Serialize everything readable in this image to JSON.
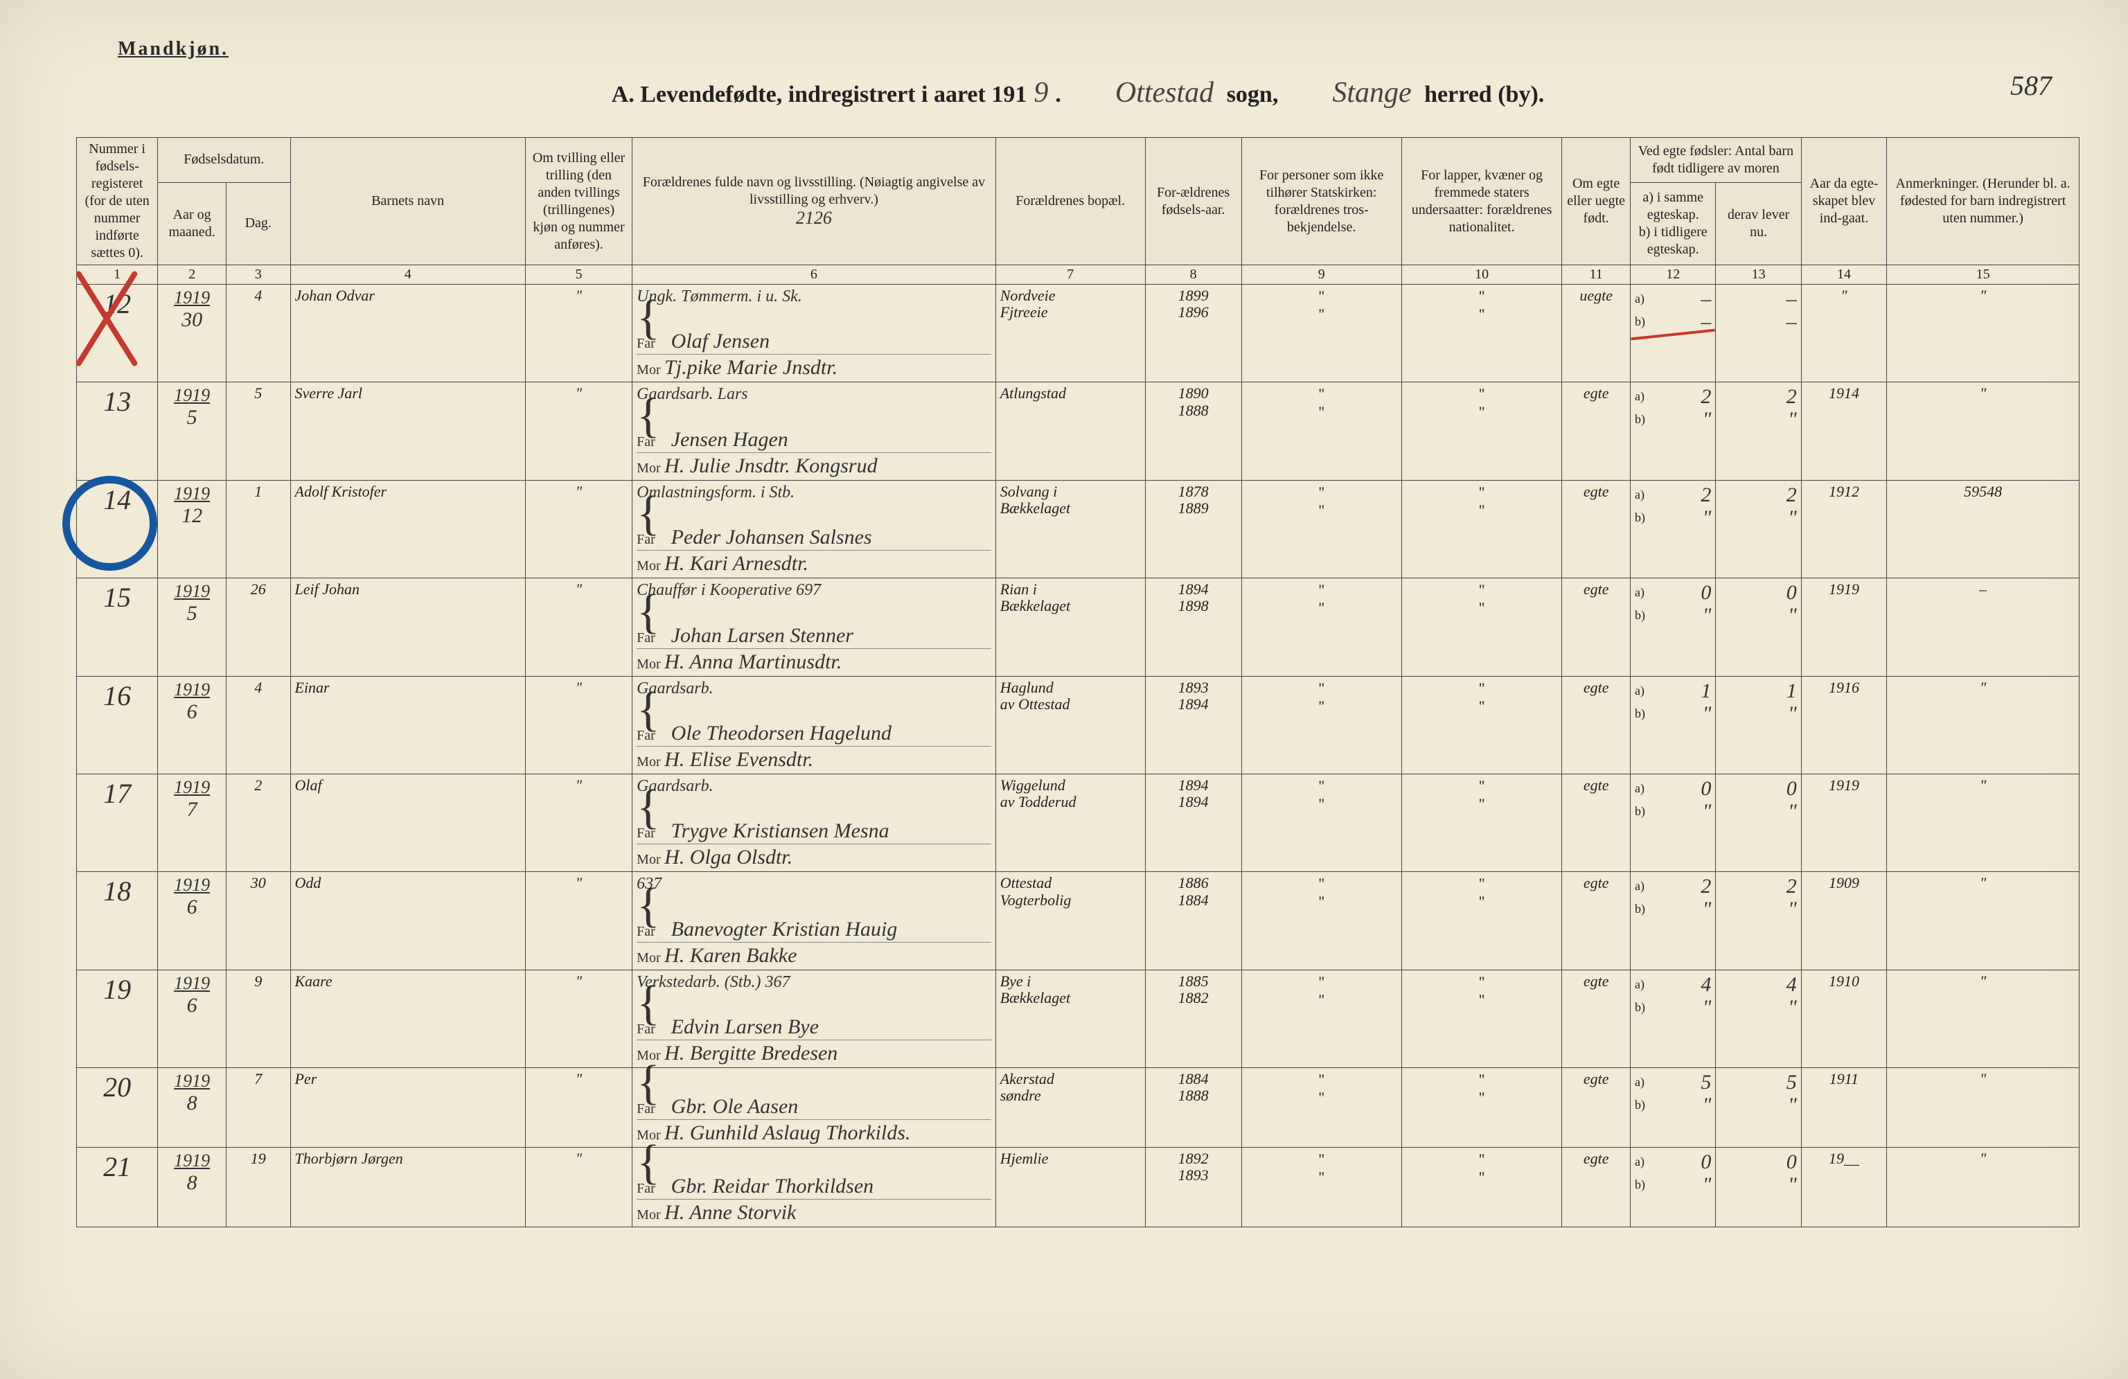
{
  "meta": {
    "top_label": "Mandkjøn.",
    "page_number": "587",
    "title_prefix": "A. Levendefødte, indregistrert i aaret 191",
    "year_suffix": "9",
    "sogn_label": "sogn,",
    "sogn_value": "Ottestad",
    "herred_label": "herred (by).",
    "herred_value": "Stange",
    "ref_note": "2126"
  },
  "headers": {
    "c1": "Nummer i fødsels-registeret (for de uten nummer indførte sættes 0).",
    "c2_group": "Fødselsdatum.",
    "c2": "Aar og maaned.",
    "c3": "Dag.",
    "c4": "Barnets navn",
    "c5": "Om tvilling eller trilling (den anden tvillings (trillingenes) kjøn og nummer anføres).",
    "c6": "Forældrenes fulde navn og livsstilling. (Nøiagtig angivelse av livsstilling og erhverv.)",
    "c7": "Forældrenes bopæl.",
    "c8": "For-ældrenes fødsels-aar.",
    "c9": "For personer som ikke tilhører Statskirken: forældrenes tros-bekjendelse.",
    "c10": "For lapper, kvæner og fremmede staters undersaatter: forældrenes nationalitet.",
    "c11": "Om egte eller uegte født.",
    "c12_group": "Ved egte fødsler: Antal barn født tidligere av moren",
    "c12": "a) i samme egteskap.",
    "c13": "derav lever nu.",
    "c12b": "b) i tidligere egteskap.",
    "c14": "Aar da egte-skapet blev ind-gaat.",
    "c15": "Anmerkninger. (Herunder bl. a. fødested for barn indregistrert uten nummer.)",
    "far": "Far",
    "mor": "Mor"
  },
  "colnums": [
    "1",
    "2",
    "3",
    "4",
    "5",
    "6",
    "7",
    "8",
    "9",
    "10",
    "11",
    "12",
    "13",
    "14",
    "15"
  ],
  "rows": [
    {
      "num": "12",
      "year": "1919",
      "month": "30",
      "day": "4",
      "name": "Johan Odvar",
      "twin": "\"",
      "occ": "Ungk. Tømmerm. i u. Sk.",
      "far": "Olaf Jensen",
      "mor": "Tj.pike Marie Jnsdtr.",
      "bopel_far": "Nordveie",
      "bopel_mor": "Fjtreeie",
      "faar_far": "1899",
      "faar_mor": "1896",
      "c9": "\"",
      "c10": "\"",
      "egte": "uegte",
      "c12a": "–",
      "c12b": "–",
      "c13a": "–",
      "c13b": "–",
      "c14": "\"",
      "c15": "\"",
      "strike12": true
    },
    {
      "num": "13",
      "year": "1919",
      "month": "5",
      "day": "5",
      "name": "Sverre Jarl",
      "twin": "\"",
      "occ": "Gaardsarb. Lars",
      "far": "Jensen Hagen",
      "mor": "H. Julie Jnsdtr. Kongsrud",
      "bopel_far": "Atlungstad",
      "bopel_mor": "",
      "faar_far": "1890",
      "faar_mor": "1888",
      "c9": "\"",
      "c10": "\"",
      "egte": "egte",
      "c12a": "2",
      "c12b": "\"",
      "c13a": "2",
      "c13b": "\"",
      "c14": "1914",
      "c15": "\""
    },
    {
      "num": "14",
      "year": "1919",
      "month": "12",
      "day": "1",
      "name": "Adolf Kristofer",
      "twin": "\"",
      "occ": "Omlastningsform. i Stb.",
      "far": "Peder Johansen Salsnes",
      "mor": "H. Kari Arnesdtr.",
      "bopel_far": "Solvang i",
      "bopel_mor": "Bækkelaget",
      "faar_far": "1878",
      "faar_mor": "1889",
      "c9": "\"",
      "c10": "\"",
      "egte": "egte",
      "c12a": "2",
      "c12b": "\"",
      "c13a": "2",
      "c13b": "\"",
      "c14": "1912",
      "c15": "59548"
    },
    {
      "num": "15",
      "year": "1919",
      "month": "5",
      "day": "26",
      "name": "Leif Johan",
      "twin": "\"",
      "occ": "Chauffør i Kooperative 697",
      "far": "Johan Larsen Stenner",
      "mor": "H. Anna Martinusdtr.",
      "bopel_far": "Rian i",
      "bopel_mor": "Bækkelaget",
      "faar_far": "1894",
      "faar_mor": "1898",
      "c9": "\"",
      "c10": "\"",
      "egte": "egte",
      "c12a": "0",
      "c12b": "\"",
      "c13a": "0",
      "c13b": "\"",
      "c14": "1919",
      "c15": "–"
    },
    {
      "num": "16",
      "year": "1919",
      "month": "6",
      "day": "4",
      "name": "Einar",
      "twin": "\"",
      "occ": "Gaardsarb.",
      "far": "Ole Theodorsen Hagelund",
      "mor": "H. Elise Evensdtr.",
      "bopel_far": "Haglund",
      "bopel_mor": "av Ottestad",
      "faar_far": "1893",
      "faar_mor": "1894",
      "c9": "\"",
      "c10": "\"",
      "egte": "egte",
      "c12a": "1",
      "c12b": "\"",
      "c13a": "1",
      "c13b": "\"",
      "c14": "1916",
      "c15": "\""
    },
    {
      "num": "17",
      "year": "1919",
      "month": "7",
      "day": "2",
      "name": "Olaf",
      "twin": "\"",
      "occ": "Gaardsarb.",
      "far": "Trygve Kristiansen Mesna",
      "mor": "H. Olga Olsdtr.",
      "bopel_far": "Wiggelund",
      "bopel_mor": "av Todderud",
      "faar_far": "1894",
      "faar_mor": "1894",
      "c9": "\"",
      "c10": "\"",
      "egte": "egte",
      "c12a": "0",
      "c12b": "\"",
      "c13a": "0",
      "c13b": "\"",
      "c14": "1919",
      "c15": "\""
    },
    {
      "num": "18",
      "year": "1919",
      "month": "6",
      "day": "30",
      "name": "Odd",
      "twin": "\"",
      "occ": "637",
      "far": "Banevogter Kristian Hauig",
      "mor": "H. Karen Bakke",
      "bopel_far": "Ottestad",
      "bopel_mor": "Vogterbolig",
      "faar_far": "1886",
      "faar_mor": "1884",
      "c9": "\"",
      "c10": "\"",
      "egte": "egte",
      "c12a": "2",
      "c12b": "\"",
      "c13a": "2",
      "c13b": "\"",
      "c14": "1909",
      "c15": "\""
    },
    {
      "num": "19",
      "year": "1919",
      "month": "6",
      "day": "9",
      "name": "Kaare",
      "twin": "\"",
      "occ": "Verkstedarb. (Stb.) 367",
      "far": "Edvin Larsen Bye",
      "mor": "H. Bergitte Bredesen",
      "bopel_far": "Bye i",
      "bopel_mor": "Bækkelaget",
      "faar_far": "1885",
      "faar_mor": "1882",
      "c9": "\"",
      "c10": "\"",
      "egte": "egte",
      "c12a": "4",
      "c12b": "\"",
      "c13a": "4",
      "c13b": "\"",
      "c14": "1910",
      "c15": "\""
    },
    {
      "num": "20",
      "year": "1919",
      "month": "8",
      "day": "7",
      "name": "Per",
      "twin": "\"",
      "occ": "",
      "far": "Gbr. Ole Aasen",
      "mor": "H. Gunhild Aslaug Thorkilds.",
      "bopel_far": "Akerstad",
      "bopel_mor": "søndre",
      "faar_far": "1884",
      "faar_mor": "1888",
      "c9": "\"",
      "c10": "\"",
      "egte": "egte",
      "c12a": "5",
      "c12b": "\"",
      "c13a": "5",
      "c13b": "\"",
      "c14": "1911",
      "c15": "\""
    },
    {
      "num": "21",
      "year": "1919",
      "month": "8",
      "day": "19",
      "name": "Thorbjørn Jørgen",
      "twin": "\"",
      "occ": "",
      "far": "Gbr. Reidar Thorkildsen",
      "mor": "H. Anne Storvik",
      "bopel_far": "Hjemlie",
      "bopel_mor": "",
      "faar_far": "1892",
      "faar_mor": "1893",
      "c9": "\"",
      "c10": "\"",
      "egte": "egte",
      "c12a": "0",
      "c12b": "\"",
      "c13a": "0",
      "c13b": "\"",
      "c14": "19__",
      "c15": "\""
    }
  ],
  "style": {
    "page_bg": "#f0ead6",
    "ink": "#333333",
    "red": "#c43a2e",
    "blue": "#1557a0",
    "border": "#444444",
    "script_font": "cursive",
    "print_font": "Times New Roman",
    "title_fontsize": 34,
    "script_fontsize": 30,
    "header_fontsize": 20
  }
}
